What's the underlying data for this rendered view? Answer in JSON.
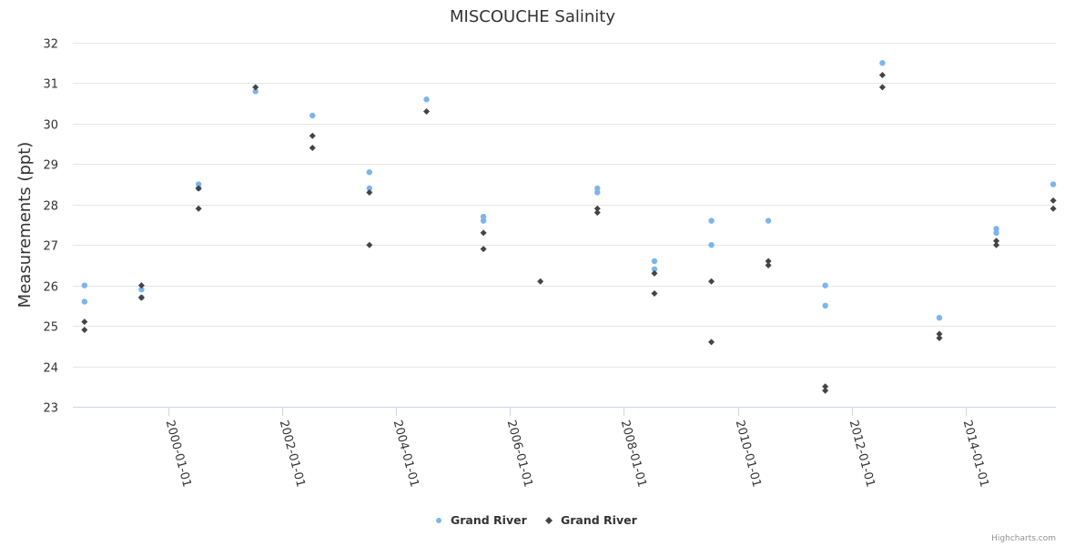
{
  "chart_data": {
    "type": "scatter",
    "title": "MISCOUCHE Salinity",
    "ylabel": "Measurements (ppt)",
    "xlabel": "",
    "ylim": [
      23,
      32
    ],
    "yticks": [
      23,
      24,
      25,
      26,
      27,
      28,
      29,
      30,
      31,
      32
    ],
    "xlim": [
      "1998-05-01",
      "2015-08-01"
    ],
    "xticks": [
      "2000-01-01",
      "2002-01-01",
      "2004-01-01",
      "2006-01-01",
      "2008-01-01",
      "2010-01-01",
      "2012-01-01",
      "2014-01-01"
    ],
    "series": [
      {
        "name": "Grand River",
        "marker": "circle",
        "color": "#7cb5ec",
        "points": [
          {
            "x": "1998-07-15",
            "y": 26.0
          },
          {
            "x": "1998-07-15",
            "y": 25.6
          },
          {
            "x": "1999-07-15",
            "y": 25.9
          },
          {
            "x": "1999-07-15",
            "y": 25.7
          },
          {
            "x": "2000-07-15",
            "y": 28.5
          },
          {
            "x": "2000-07-15",
            "y": 28.4
          },
          {
            "x": "2001-07-15",
            "y": 30.8
          },
          {
            "x": "2002-07-15",
            "y": 30.2
          },
          {
            "x": "2003-07-15",
            "y": 28.8
          },
          {
            "x": "2003-07-15",
            "y": 28.4
          },
          {
            "x": "2004-07-15",
            "y": 30.6
          },
          {
            "x": "2005-07-15",
            "y": 27.7
          },
          {
            "x": "2005-07-15",
            "y": 27.6
          },
          {
            "x": "2007-07-15",
            "y": 28.4
          },
          {
            "x": "2007-07-15",
            "y": 28.3
          },
          {
            "x": "2008-07-15",
            "y": 26.6
          },
          {
            "x": "2008-07-15",
            "y": 26.4
          },
          {
            "x": "2009-07-15",
            "y": 27.6
          },
          {
            "x": "2009-07-15",
            "y": 27.0
          },
          {
            "x": "2010-07-15",
            "y": 27.6
          },
          {
            "x": "2011-07-15",
            "y": 26.0
          },
          {
            "x": "2011-07-15",
            "y": 25.5
          },
          {
            "x": "2012-07-15",
            "y": 31.5
          },
          {
            "x": "2013-07-15",
            "y": 25.2
          },
          {
            "x": "2014-07-15",
            "y": 27.4
          },
          {
            "x": "2014-07-15",
            "y": 27.3
          },
          {
            "x": "2015-07-15",
            "y": 28.5
          }
        ]
      },
      {
        "name": "Grand River",
        "marker": "diamond",
        "color": "#434348",
        "points": [
          {
            "x": "1998-07-15",
            "y": 25.1
          },
          {
            "x": "1998-07-15",
            "y": 24.9
          },
          {
            "x": "1999-07-15",
            "y": 26.0
          },
          {
            "x": "1999-07-15",
            "y": 25.7
          },
          {
            "x": "2000-07-15",
            "y": 28.4
          },
          {
            "x": "2000-07-15",
            "y": 27.9
          },
          {
            "x": "2001-07-15",
            "y": 30.9
          },
          {
            "x": "2002-07-15",
            "y": 29.7
          },
          {
            "x": "2002-07-15",
            "y": 29.4
          },
          {
            "x": "2003-07-15",
            "y": 28.3
          },
          {
            "x": "2003-07-15",
            "y": 27.0
          },
          {
            "x": "2004-07-15",
            "y": 30.3
          },
          {
            "x": "2005-07-15",
            "y": 27.3
          },
          {
            "x": "2005-07-15",
            "y": 26.9
          },
          {
            "x": "2006-07-15",
            "y": 26.1
          },
          {
            "x": "2007-07-15",
            "y": 27.9
          },
          {
            "x": "2007-07-15",
            "y": 27.8
          },
          {
            "x": "2008-07-15",
            "y": 26.3
          },
          {
            "x": "2008-07-15",
            "y": 25.8
          },
          {
            "x": "2009-07-15",
            "y": 26.1
          },
          {
            "x": "2009-07-15",
            "y": 24.6
          },
          {
            "x": "2010-07-15",
            "y": 26.6
          },
          {
            "x": "2010-07-15",
            "y": 26.5
          },
          {
            "x": "2011-07-15",
            "y": 23.5
          },
          {
            "x": "2011-07-15",
            "y": 23.4
          },
          {
            "x": "2012-07-15",
            "y": 31.2
          },
          {
            "x": "2012-07-15",
            "y": 30.9
          },
          {
            "x": "2013-07-15",
            "y": 24.8
          },
          {
            "x": "2013-07-15",
            "y": 24.7
          },
          {
            "x": "2014-07-15",
            "y": 27.1
          },
          {
            "x": "2014-07-15",
            "y": 27.0
          },
          {
            "x": "2015-07-15",
            "y": 28.1
          },
          {
            "x": "2015-07-15",
            "y": 27.9
          }
        ]
      }
    ],
    "legend": {
      "position": "bottom-center"
    }
  },
  "credits": "Highcharts.com"
}
